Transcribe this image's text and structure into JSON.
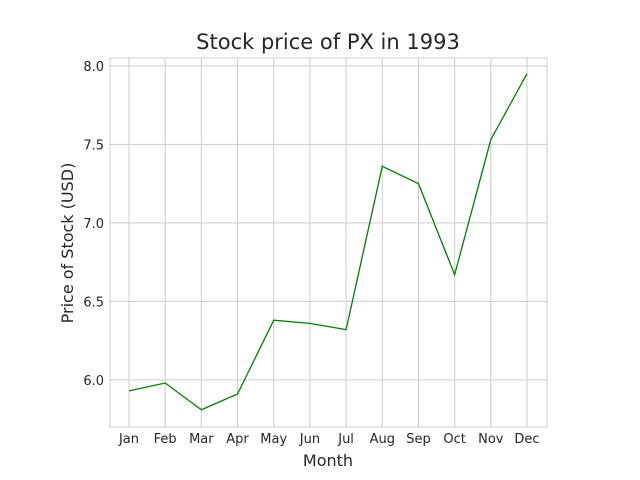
{
  "chart_data": {
    "type": "line",
    "title": "Stock price of PX in 1993",
    "xlabel": "Month",
    "ylabel": "Price of Stock (USD)",
    "categories": [
      "Jan",
      "Feb",
      "Mar",
      "Apr",
      "May",
      "Jun",
      "Jul",
      "Aug",
      "Sep",
      "Oct",
      "Nov",
      "Dec"
    ],
    "values": [
      5.93,
      5.98,
      5.81,
      5.91,
      6.38,
      6.36,
      6.32,
      7.36,
      7.25,
      6.67,
      7.53,
      7.95
    ],
    "ylim": [
      5.7,
      8.05
    ],
    "yticks": [
      6.0,
      6.5,
      7.0,
      7.5,
      8.0
    ],
    "ytick_labels": [
      "6.0",
      "6.5",
      "7.0",
      "7.5",
      "8.0"
    ],
    "line_color": "#008000",
    "grid": true
  }
}
